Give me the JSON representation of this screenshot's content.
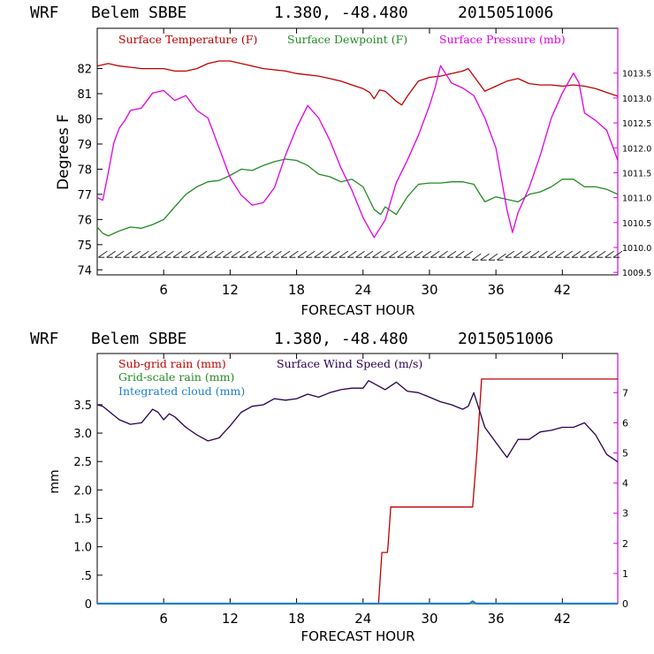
{
  "chart_data": [
    {
      "type": "line",
      "header": {
        "model": "WRF",
        "station": "Belem SBBE",
        "coords": "1.380, -48.480",
        "run": "2015051006"
      },
      "xlabel": "FORECAST HOUR",
      "ylabel": "Degrees F",
      "xlim": [
        0,
        47
      ],
      "ylim": [
        73.8,
        83.6
      ],
      "y2lim": [
        1009.45,
        1014.4
      ],
      "xticks": [
        6,
        12,
        18,
        24,
        30,
        36,
        42
      ],
      "yticks": [
        74,
        75,
        76,
        77,
        78,
        79,
        80,
        81,
        82
      ],
      "y2ticks": [
        "1009.5",
        "1010.0",
        "1010.5",
        "1011.0",
        "1011.5",
        "1012.0",
        "1012.5",
        "1013.0",
        "1013.5"
      ],
      "legend": [
        "Surface Temperature (F)",
        "Surface Dewpoint (F)",
        "Surface Pressure (mb)"
      ],
      "colors": {
        "temperature": "#c00000",
        "dewpoint": "#228b22",
        "pressure": "#e000e0",
        "axis": "#e000e0",
        "barbs": "#000000"
      },
      "series": [
        {
          "name": "Surface Temperature (F)",
          "axis": "left",
          "x": [
            0,
            1,
            2,
            3,
            4,
            5,
            6,
            7,
            8,
            9,
            10,
            11,
            12,
            13,
            14,
            15,
            16,
            17,
            18,
            19,
            20,
            21,
            22,
            23,
            24,
            24.6,
            25,
            25.5,
            26,
            27,
            27.5,
            28,
            29,
            30,
            31,
            32,
            33,
            33.5,
            34,
            35,
            36,
            37,
            38,
            39,
            40,
            41,
            42,
            43,
            44,
            45,
            46,
            47
          ],
          "values": [
            82.1,
            82.2,
            82.1,
            82.05,
            82.0,
            82.0,
            82.0,
            81.9,
            81.9,
            82.0,
            82.2,
            82.3,
            82.3,
            82.2,
            82.1,
            82.0,
            81.95,
            81.9,
            81.8,
            81.75,
            81.7,
            81.6,
            81.5,
            81.35,
            81.2,
            81.05,
            80.8,
            81.15,
            81.1,
            80.7,
            80.55,
            80.9,
            81.5,
            81.65,
            81.7,
            81.8,
            81.9,
            82.0,
            81.7,
            81.1,
            81.3,
            81.5,
            81.6,
            81.4,
            81.35,
            81.35,
            81.3,
            81.35,
            81.3,
            81.2,
            81.05,
            80.9
          ]
        },
        {
          "name": "Surface Dewpoint (F)",
          "axis": "left",
          "x": [
            0,
            0.5,
            1,
            2,
            3,
            4,
            5,
            6,
            7,
            8,
            9,
            10,
            11,
            12,
            13,
            14,
            15,
            16,
            17,
            18,
            19,
            20,
            21,
            22,
            23,
            24,
            25,
            25.6,
            26,
            27,
            28,
            29,
            30,
            31,
            32,
            33,
            34,
            35,
            36,
            37,
            38,
            39,
            40,
            41,
            42,
            43,
            44,
            45,
            46,
            47
          ],
          "values": [
            75.7,
            75.45,
            75.35,
            75.55,
            75.7,
            75.65,
            75.8,
            76.0,
            76.5,
            77.0,
            77.3,
            77.5,
            77.55,
            77.75,
            78.0,
            77.95,
            78.15,
            78.3,
            78.4,
            78.35,
            78.15,
            77.8,
            77.7,
            77.5,
            77.6,
            77.3,
            76.4,
            76.2,
            76.5,
            76.2,
            76.9,
            77.4,
            77.45,
            77.45,
            77.5,
            77.5,
            77.4,
            76.7,
            76.9,
            76.8,
            76.7,
            77.0,
            77.1,
            77.3,
            77.6,
            77.6,
            77.3,
            77.3,
            77.2,
            77.0
          ]
        },
        {
          "name": "Surface Pressure (mb)",
          "axis": "right",
          "x": [
            0,
            0.5,
            1,
            1.5,
            2,
            2.5,
            3,
            4,
            5,
            6,
            7,
            8,
            9,
            10,
            11,
            12,
            13,
            14,
            15,
            16,
            17,
            18,
            19,
            20,
            21,
            22,
            23,
            24,
            25,
            26,
            27,
            28,
            29,
            30,
            30.5,
            31,
            32,
            33,
            34,
            35,
            36,
            37,
            37.5,
            38,
            39,
            40,
            41,
            42,
            43,
            43.5,
            44,
            45,
            46,
            47
          ],
          "values": [
            1011.0,
            1010.95,
            1011.5,
            1012.1,
            1012.4,
            1012.55,
            1012.75,
            1012.8,
            1013.1,
            1013.15,
            1012.95,
            1013.05,
            1012.75,
            1012.6,
            1012.0,
            1011.4,
            1011.05,
            1010.85,
            1010.9,
            1011.2,
            1011.85,
            1012.4,
            1012.85,
            1012.6,
            1012.15,
            1011.6,
            1011.15,
            1010.6,
            1010.2,
            1010.55,
            1011.3,
            1011.75,
            1012.25,
            1012.85,
            1013.2,
            1013.65,
            1013.3,
            1013.2,
            1013.05,
            1012.6,
            1012.0,
            1010.75,
            1010.3,
            1010.7,
            1011.2,
            1011.85,
            1012.6,
            1013.1,
            1013.5,
            1013.3,
            1012.7,
            1012.55,
            1012.35,
            1011.75
          ]
        }
      ],
      "wind_barbs": {
        "y_value": 74.6,
        "x_start": 0.5,
        "x_end": 47,
        "step": 0.75
      }
    },
    {
      "type": "line",
      "header": {
        "model": "WRF",
        "station": "Belem SBBE",
        "coords": "1.380, -48.480",
        "run": "2015051006"
      },
      "xlabel": "FORECAST HOUR",
      "ylabel": "mm",
      "xlim": [
        0,
        47
      ],
      "ylim": [
        0,
        4.4
      ],
      "y2lim": [
        0,
        8.3
      ],
      "xticks": [
        6,
        12,
        18,
        24,
        30,
        36,
        42
      ],
      "yticks": [
        "0",
        ".5",
        "1.0",
        "1.5",
        "2.0",
        "2.5",
        "3.0",
        "3.5"
      ],
      "ytick_values": [
        0,
        0.5,
        1.0,
        1.5,
        2.0,
        2.5,
        3.0,
        3.5
      ],
      "y2ticks": [
        0,
        1,
        2,
        3,
        4,
        5,
        6,
        7
      ],
      "legend": [
        "Sub-grid rain (mm)",
        "Grid-scale rain (mm)",
        "Integrated cloud (mm)",
        "Surface Wind Speed (m/s)"
      ],
      "colors": {
        "subgrid": "#c00000",
        "gridscale": "#228b22",
        "cloud": "#1e7fd0",
        "wind": "#2a0050",
        "axis": "#e000e0"
      },
      "series": [
        {
          "name": "Sub-grid rain (mm)",
          "axis": "left",
          "x": [
            0,
            25.4,
            25.7,
            25.75,
            26.2,
            26.25,
            26.5,
            33.9,
            34.3,
            34.7,
            47
          ],
          "values": [
            0,
            0,
            0.9,
            0.9,
            0.9,
            1.0,
            1.7,
            1.7,
            2.7,
            3.95,
            3.95
          ]
        },
        {
          "name": "Grid-scale rain (mm)",
          "axis": "left",
          "x": [
            0,
            47
          ],
          "values": [
            0,
            0
          ]
        },
        {
          "name": "Integrated cloud (mm)",
          "axis": "left",
          "x": [
            0,
            33.6,
            33.9,
            34.2,
            47
          ],
          "values": [
            0,
            0,
            0.04,
            0,
            0
          ]
        },
        {
          "name": "Surface Wind Speed (m/s)",
          "axis": "right",
          "x": [
            0,
            0.5,
            1,
            2,
            3,
            4,
            5,
            5.5,
            6,
            6.5,
            7,
            8,
            9,
            10,
            11,
            12,
            13,
            14,
            15,
            16,
            17,
            18,
            19,
            20,
            21,
            22,
            23,
            24,
            24.5,
            25,
            26,
            27,
            28,
            29,
            30,
            31,
            32,
            33,
            33.5,
            34,
            35,
            36,
            37,
            38,
            39,
            40,
            41,
            42,
            43,
            44,
            45,
            46,
            47
          ],
          "values": [
            6.6,
            6.55,
            6.4,
            6.1,
            5.95,
            6.0,
            6.45,
            6.35,
            6.1,
            6.3,
            6.2,
            5.85,
            5.6,
            5.4,
            5.5,
            5.9,
            6.35,
            6.55,
            6.6,
            6.8,
            6.75,
            6.8,
            6.95,
            6.85,
            7.0,
            7.1,
            7.15,
            7.15,
            7.4,
            7.3,
            7.1,
            7.35,
            7.05,
            7.0,
            6.85,
            6.7,
            6.6,
            6.45,
            6.55,
            7.0,
            5.85,
            5.35,
            4.85,
            5.45,
            5.45,
            5.7,
            5.75,
            5.85,
            5.85,
            6.0,
            5.6,
            4.95,
            4.7
          ]
        }
      ]
    }
  ]
}
